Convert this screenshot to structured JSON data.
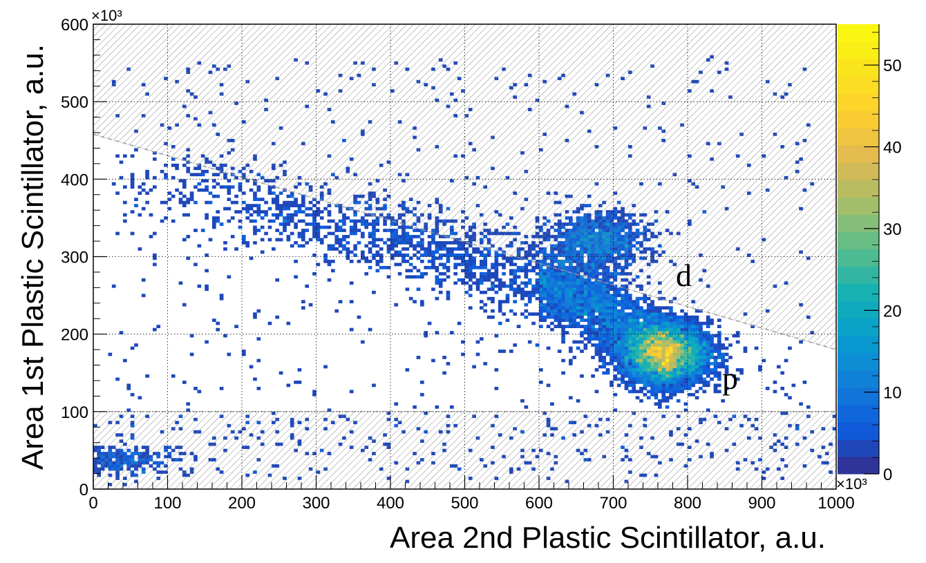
{
  "chart_data": {
    "type": "heatmap",
    "title": "",
    "xlabel": "Area 2nd Plastic Scintillator, a.u.",
    "ylabel": "Area 1st Plastic Scintillator, a.u.",
    "xlim": [
      0,
      1000000
    ],
    "ylim": [
      0,
      600000
    ],
    "x_ticks": [
      "0",
      "100",
      "200",
      "300",
      "400",
      "500",
      "600",
      "700",
      "800",
      "900",
      "1000"
    ],
    "y_ticks": [
      "0",
      "100",
      "200",
      "300",
      "400",
      "500",
      "600"
    ],
    "x_exponent": "×10³",
    "y_exponent": "×10³",
    "z_range": [
      0,
      55000
    ],
    "z_ticks": [
      "0",
      "10",
      "20",
      "30",
      "40",
      "50"
    ],
    "z_exponent": "×10³",
    "colormap": "parula-like (dark blue to yellow)",
    "grid": true,
    "clusters": [
      {
        "label": "p",
        "center": [
          770000,
          175000
        ],
        "peak_counts": 50000
      },
      {
        "label": "d",
        "center": [
          680000,
          320000
        ],
        "peak_counts": 8000
      }
    ],
    "band": {
      "description": "correlated band from low-x/high-y to high-x/low-y",
      "points": [
        [
          20000,
          410000
        ],
        [
          200000,
          370000
        ],
        [
          400000,
          320000
        ],
        [
          550000,
          285000
        ],
        [
          650000,
          250000
        ],
        [
          720000,
          210000
        ],
        [
          770000,
          180000
        ]
      ]
    },
    "cut_regions": {
      "hatched": true,
      "upper_line": [
        [
          0,
          458000
        ],
        [
          1000000,
          180000
        ]
      ],
      "lower_y": 100000
    },
    "annotations": [
      {
        "text": "d",
        "x": 800000,
        "y": 272000
      },
      {
        "text": "p",
        "x": 865000,
        "y": 135000
      }
    ]
  }
}
